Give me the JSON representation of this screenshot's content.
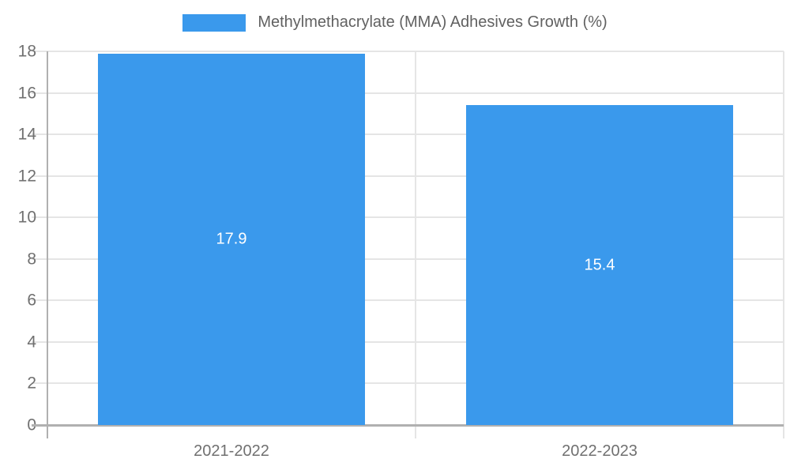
{
  "chart_data": {
    "type": "bar",
    "title": "Methylmethacrylate (MMA) Adhesives Growth (%)",
    "categories": [
      "2021-2022",
      "2022-2023"
    ],
    "series": [
      {
        "name": "Methylmethacrylate (MMA) Adhesives Growth (%)",
        "values": [
          17.9,
          15.4
        ]
      }
    ],
    "value_labels": [
      "17.9",
      "15.4"
    ],
    "ytick_labels": [
      "0",
      "2",
      "4",
      "6",
      "8",
      "10",
      "12",
      "14",
      "16",
      "18"
    ],
    "ylim": [
      0,
      18
    ],
    "ytick_step": 2,
    "xlabel": "",
    "ylabel": "",
    "grid": true,
    "legend_position": "top",
    "colors": {
      "bar": "#3A99EC",
      "axis": "#b0b0b0",
      "gridline": "#e5e5e5",
      "tick_text": "#707070",
      "legend_text": "#616161",
      "bar_value_text": "#ffffff",
      "background": "#ffffff"
    }
  }
}
